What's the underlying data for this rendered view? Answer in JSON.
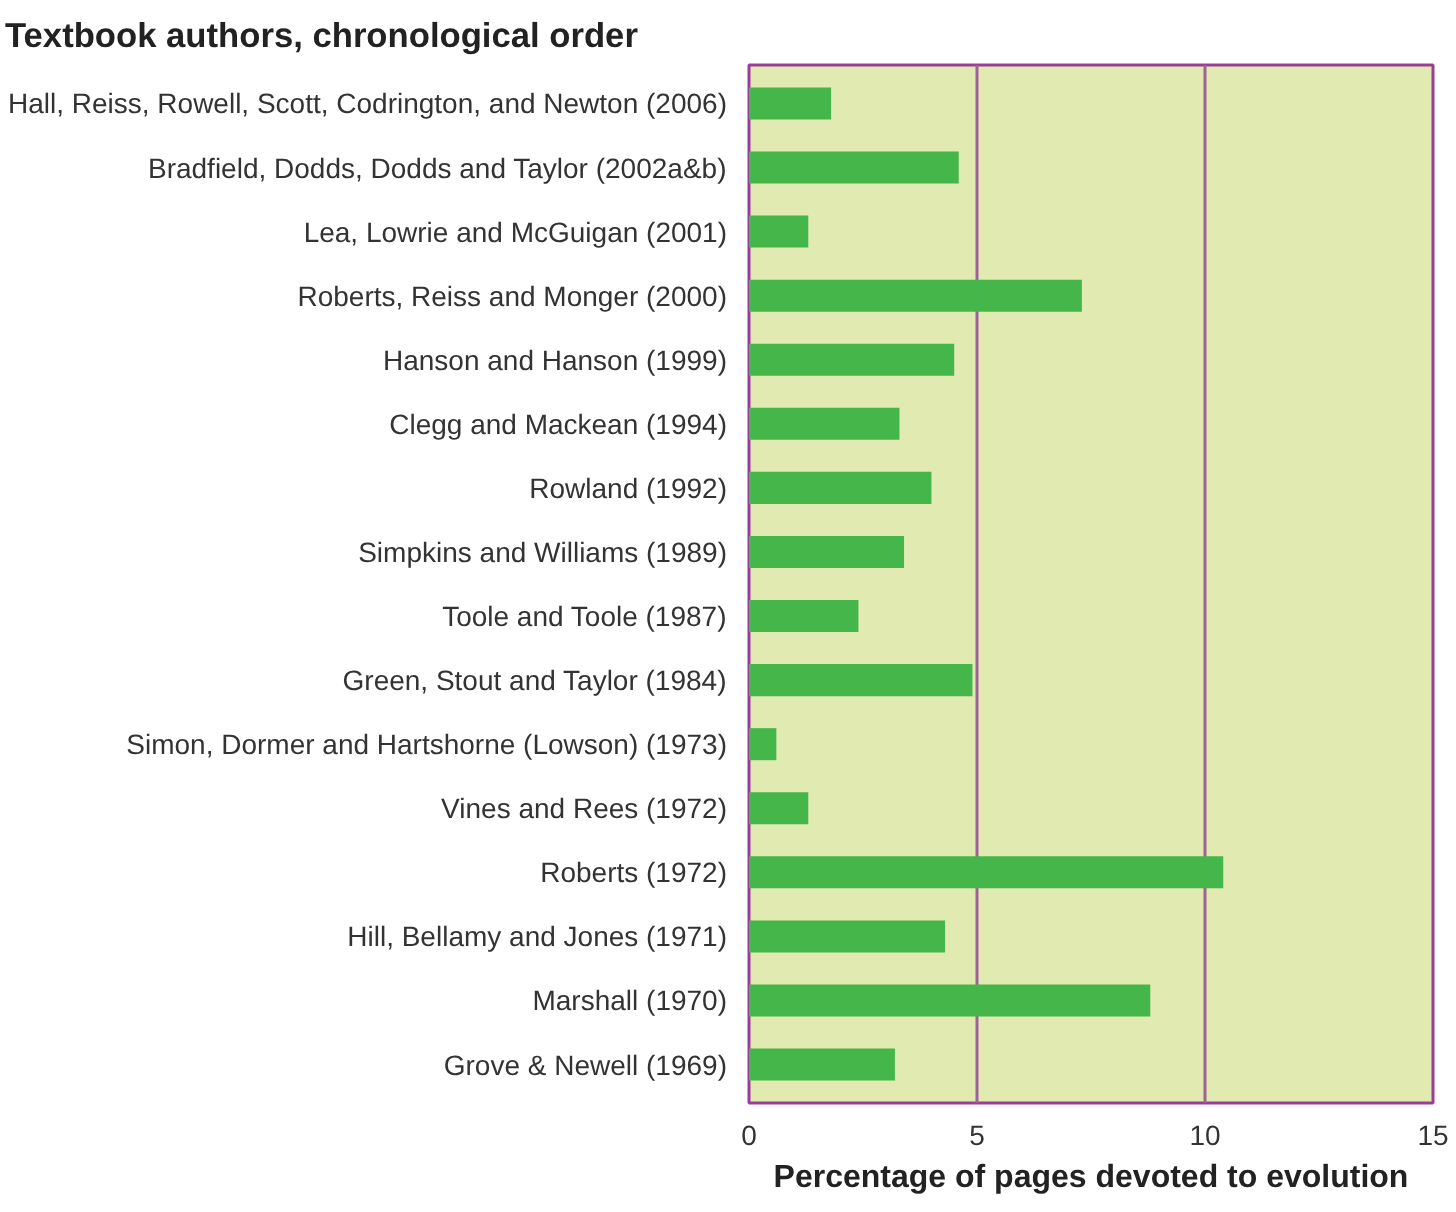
{
  "chart_data": {
    "type": "bar",
    "orientation": "horizontal",
    "title": "Textbook authors, chronological order",
    "xlabel": "Percentage of pages devoted to evolution",
    "categories": [
      "Hall, Reiss, Rowell, Scott, Codrington, and Newton (2006)",
      "Bradfield, Dodds, Dodds and Taylor (2002a&b)",
      "Lea, Lowrie and McGuigan (2001)",
      "Roberts, Reiss and Monger (2000)",
      "Hanson and Hanson (1999)",
      "Clegg and Mackean (1994)",
      "Rowland (1992)",
      "Simpkins and Williams (1989)",
      "Toole and Toole (1987)",
      "Green, Stout and Taylor (1984)",
      "Simon, Dormer and Hartshorne (Lowson) (1973)",
      "Vines and Rees (1972)",
      "Roberts (1972)",
      "Hill, Bellamy and Jones (1971)",
      "Marshall (1970)",
      "Grove & Newell (1969)"
    ],
    "values": [
      1.8,
      4.6,
      1.3,
      7.3,
      4.5,
      3.3,
      4.0,
      3.4,
      2.4,
      4.9,
      0.6,
      1.3,
      10.4,
      4.3,
      8.8,
      3.2
    ],
    "color": "#45b649",
    "xlim": [
      0,
      15
    ],
    "xticks": [
      0,
      5,
      10,
      15
    ],
    "grid": "x"
  }
}
